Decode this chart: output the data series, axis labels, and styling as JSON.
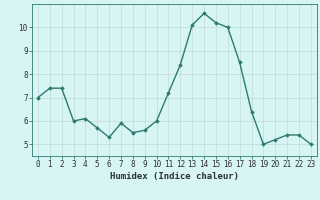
{
  "x": [
    0,
    1,
    2,
    3,
    4,
    5,
    6,
    7,
    8,
    9,
    10,
    11,
    12,
    13,
    14,
    15,
    16,
    17,
    18,
    19,
    20,
    21,
    22,
    23
  ],
  "y": [
    7.0,
    7.4,
    7.4,
    6.0,
    6.1,
    5.7,
    5.3,
    5.9,
    5.5,
    5.6,
    6.0,
    7.2,
    8.4,
    10.1,
    10.6,
    10.2,
    10.0,
    8.5,
    6.4,
    5.0,
    5.2,
    5.4,
    5.4,
    5.0
  ],
  "xlabel": "Humidex (Indice chaleur)",
  "ylim": [
    4.5,
    11.0
  ],
  "xlim": [
    -0.5,
    23.5
  ],
  "yticks": [
    5,
    6,
    7,
    8,
    9,
    10
  ],
  "xticks": [
    0,
    1,
    2,
    3,
    4,
    5,
    6,
    7,
    8,
    9,
    10,
    11,
    12,
    13,
    14,
    15,
    16,
    17,
    18,
    19,
    20,
    21,
    22,
    23
  ],
  "line_color": "#2d7a6e",
  "marker": "D",
  "marker_size": 1.8,
  "line_width": 1.0,
  "bg_color": "#d8f5f5",
  "grid_color": "#c0d8d8",
  "axis_color": "#2d7a6e",
  "tick_label_color": "#2d3030",
  "tick_fontsize": 5.5,
  "xlabel_fontsize": 6.5
}
